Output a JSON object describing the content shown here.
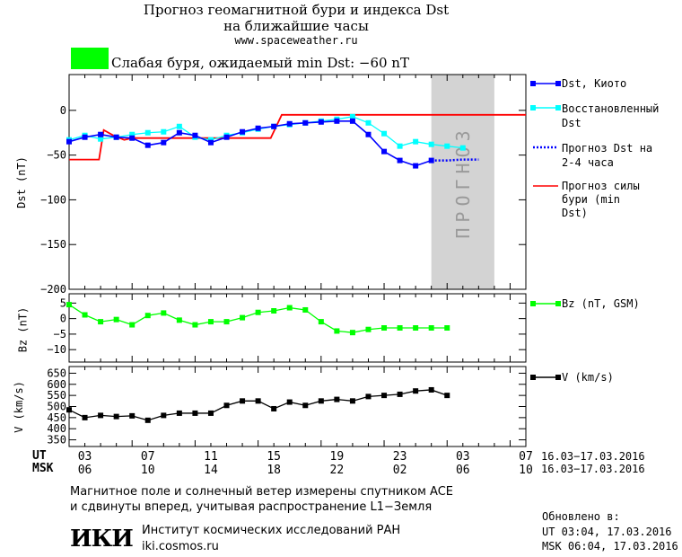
{
  "header": {
    "title_line1": "Прогноз геомагнитной бури и индекса Dst",
    "title_line2": "на ближайшие часы",
    "url": "www.spaceweather.ru",
    "status_color": "#00ff00",
    "status_text": "Слабая буря, ожидаемый min Dst: −60 nT"
  },
  "chart_data": [
    {
      "type": "line",
      "panel": "dst",
      "ylabel": "Dst (nT)",
      "ylim": [
        -200,
        40
      ],
      "xlim": [
        2,
        31
      ],
      "yticks": [
        0,
        -50,
        -100,
        -150,
        -200
      ],
      "yticklabels": [
        "0",
        "−50",
        "−100",
        "−150",
        "−200"
      ],
      "shaded_label": "ПРОГНОЗ",
      "shaded_range": [
        25,
        29
      ],
      "series": [
        {
          "name": "Dst, Киото",
          "color": "#0000ff",
          "x": [
            2,
            3,
            4,
            5,
            6,
            7,
            8,
            9,
            10,
            11,
            12,
            13,
            14,
            15,
            16,
            17,
            18,
            19,
            20,
            21,
            22,
            23,
            24,
            25
          ],
          "y": [
            -35,
            -30,
            -27,
            -30,
            -31,
            -39,
            -36,
            -25,
            -28,
            -36,
            -30,
            -24,
            -20,
            -18,
            -15,
            -14,
            -13,
            -12,
            -12,
            -27,
            -46,
            -56,
            -62,
            -56
          ]
        },
        {
          "name": "Восстановленный Dst",
          "color": "#00ffff",
          "x": [
            2,
            3,
            4,
            5,
            6,
            7,
            8,
            9,
            10,
            11,
            12,
            13,
            14,
            15,
            16,
            17,
            18,
            19,
            20,
            21,
            22,
            23,
            24,
            25,
            26,
            27
          ],
          "y": [
            -33,
            -28,
            -32,
            -30,
            -27,
            -25,
            -24,
            -18,
            -30,
            -33,
            -28,
            -25,
            -21,
            -18,
            -16,
            -14,
            -12,
            -10,
            -7,
            -14,
            -26,
            -40,
            -35,
            -38,
            -40,
            -42
          ]
        },
        {
          "name": "Прогноз Dst на 2-4 часа",
          "color": "#0000ff",
          "x": [
            25,
            26,
            27,
            28
          ],
          "y": [
            -56,
            -56,
            -55,
            -55
          ]
        },
        {
          "name": "Прогноз силы бури (min Dst)",
          "color": "#ff0000",
          "x": [
            2,
            3,
            3.9,
            4.2,
            4.8,
            5.5,
            6,
            7,
            8,
            9,
            10,
            11,
            12,
            13,
            14,
            14.8,
            15.5,
            16,
            17,
            18,
            19,
            20,
            21,
            22,
            23,
            24,
            25,
            26,
            27,
            28,
            29,
            30,
            31
          ],
          "y": [
            -55,
            -55,
            -55,
            -22,
            -28,
            -33,
            -31,
            -31,
            -31,
            -31,
            -31,
            -31,
            -31,
            -31,
            -31,
            -31,
            -5,
            -5,
            -5,
            -5,
            -5,
            -5,
            -5,
            -5,
            -5,
            -5,
            -5,
            -5,
            -5,
            -5,
            -5,
            -5,
            -5
          ]
        }
      ]
    },
    {
      "type": "line",
      "panel": "bz",
      "ylabel": "Bz (nT)",
      "ylim": [
        -14,
        8
      ],
      "yticks": [
        5,
        0,
        -5,
        -10
      ],
      "yticklabels": [
        "5",
        "0",
        "−5",
        "−10"
      ],
      "series": [
        {
          "name": "Bz (nT, GSM)",
          "color": "#00ff00",
          "x": [
            2,
            3,
            4,
            5,
            6,
            7,
            8,
            9,
            10,
            11,
            12,
            13,
            14,
            15,
            16,
            17,
            18,
            19,
            20,
            21,
            22,
            23,
            24,
            25,
            26
          ],
          "y": [
            4.5,
            1.2,
            -1,
            -0.3,
            -2,
            1,
            1.8,
            -0.5,
            -2,
            -1,
            -1,
            0.3,
            2,
            2.5,
            3.5,
            2.8,
            -1,
            -4,
            -4.5,
            -3.5,
            -3,
            -3,
            -3,
            -3,
            -3
          ]
        }
      ]
    },
    {
      "type": "line",
      "panel": "speed",
      "ylabel": "V (km/s)",
      "ylim": [
        320,
        680
      ],
      "yticks": [
        650,
        600,
        550,
        500,
        450,
        400,
        350
      ],
      "yticklabels": [
        "650",
        "600",
        "550",
        "500",
        "450",
        "400",
        "350"
      ],
      "series": [
        {
          "name": "V (km/s)",
          "color": "#000000",
          "x": [
            2,
            3,
            4,
            5,
            6,
            7,
            8,
            9,
            10,
            11,
            12,
            13,
            14,
            15,
            16,
            17,
            18,
            19,
            20,
            21,
            22,
            23,
            24,
            25,
            26
          ],
          "y": [
            485,
            450,
            460,
            455,
            458,
            438,
            460,
            470,
            470,
            470,
            505,
            525,
            525,
            490,
            520,
            505,
            525,
            532,
            525,
            545,
            550,
            555,
            570,
            575,
            550
          ]
        }
      ]
    }
  ],
  "time_axis": {
    "ut_label": "UT",
    "msk_label": "MSK",
    "ut_ticks": [
      "03",
      "07",
      "11",
      "15",
      "19",
      "23",
      "03",
      "07"
    ],
    "msk_ticks": [
      "06",
      "10",
      "14",
      "18",
      "22",
      "02",
      "06",
      "10"
    ],
    "ut_range": "16.03−17.03.2016",
    "msk_range": "16.03−17.03.2016"
  },
  "footer": {
    "note_line1": "Магнитное поле и солнечный ветер измерены спутником ACE",
    "note_line2": "и сдвинуты вперед, учитывая распространение L1−Земля",
    "logo_text": "ИКИ",
    "institute": "Институт космических исследований РАН",
    "site": "iki.cosmos.ru",
    "updated_label": "Обновлено в:",
    "updated_ut": "UT  03:04, 17.03.2016",
    "updated_msk": "MSK 06:04, 17.03.2016"
  }
}
